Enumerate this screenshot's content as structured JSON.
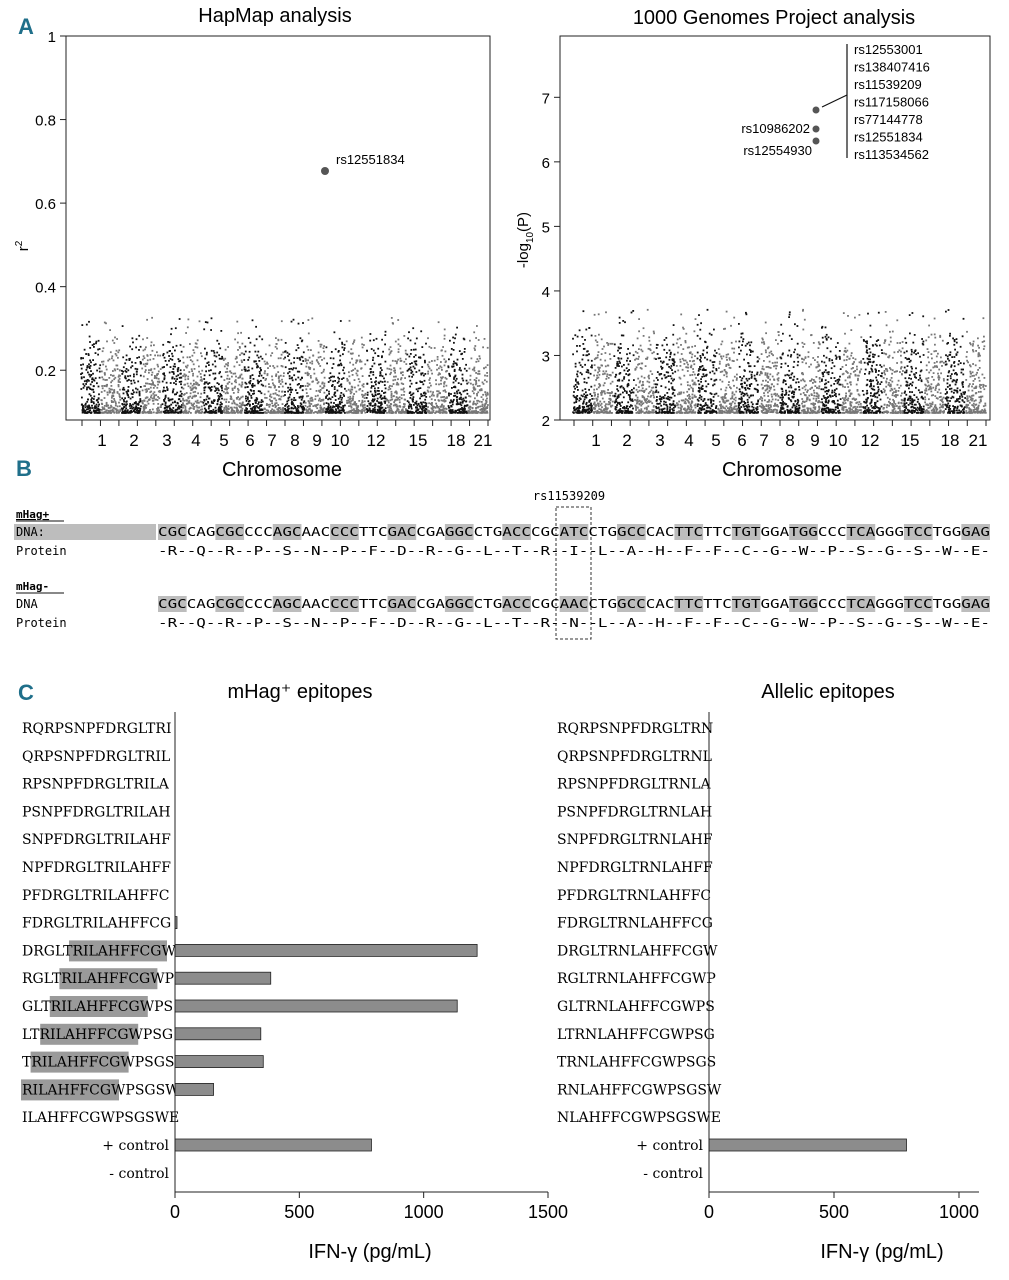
{
  "panel_labels": {
    "a": "A",
    "b": "B",
    "c": "C"
  },
  "panel_a": {
    "xlabel": "Chromosome",
    "chromosome_ticks": [
      "1",
      "2",
      "3",
      "4",
      "5",
      "6",
      "7",
      "8",
      "9",
      "10",
      "12",
      "15",
      "18",
      "21"
    ],
    "hapmap": {
      "title": "HapMap analysis",
      "ylabel": "r",
      "ylabel_sup": "2",
      "yticks": [
        "0.2",
        "0.4",
        "0.6",
        "0.8",
        "1"
      ],
      "highlight_label": "rs12551834"
    },
    "g1000": {
      "title": "1000 Genomes Project analysis",
      "ylabel": "-log",
      "ylabel_sub": "10",
      "ylabel_tail": "(P)",
      "yticks": [
        "2",
        "3",
        "4",
        "5",
        "6",
        "7"
      ],
      "left_labels": [
        "rs10986202",
        "rs12554930"
      ],
      "snp_list": [
        "rs12553001",
        "rs138407416",
        "rs11539209",
        "rs117158066",
        "rs77144778",
        "rs12551834",
        "rs113534562"
      ]
    }
  },
  "panel_b": {
    "snp_label": "rs11539209",
    "mhag_plus_label": "mHag+",
    "mhag_minus_label": "mHag-",
    "dna_label_plus": "DNA:",
    "dna_label_minus": "DNA",
    "protein_label": "Protein",
    "dna_plus": "CGCCAGCGCCCCAGCAACCCCTTCGACCGAGGCCTGACCCGCATCCTGGCCCACTTCTTCTGTGGATGGCCCTCAGGGTCCTGGGAG",
    "dna_minus": "CGCCAGCGCCCCAGCAACCCCTTCGACCGAGGCCTGACCCGCAACCTGGCCCACTTCTTCTGTGGATGGCCCTCAGGGTCCTGGGAG",
    "protein_plus": "-R--Q--R--P--S--N--P--F--D--R--G--L--T--R--I--L--A--H--F--F--C--G--W--P--S--G--S--W--E-",
    "protein_minus": "-R--Q--R--P--S--N--P--F--D--R--G--L--T--R--N--L--A--H--F--F--C--G--W--P--S--G--S--W--E-"
  },
  "chart_data": [
    {
      "type": "bar",
      "orientation": "horizontal",
      "title": "mHag⁺ epitopes",
      "xlabel": "IFN-γ (pg/mL)",
      "xlim": [
        0,
        1500
      ],
      "xticks": [
        "0",
        "500",
        "1000",
        "1500"
      ],
      "categories": [
        "RQRPSNPFDRGLTRI",
        "QRPSNPFDRGLTRIL",
        "RPSNPFDRGLTRILA",
        "PSNPFDRGLTRILAH",
        "SNPFDRGLTRILAHF",
        "NPFDRGLTRILAHFF",
        "PFDRGLTRILAHFFC",
        "FDRGLTRILAHFFCG",
        "DRGLTRILAHFFCGW",
        "RGLTRILAHFFCGWP",
        "GLTRILAHFFCGWPS",
        "LTRILAHFFCGWPSG",
        "TRILAHFFCGWPSGS",
        "RILAHFFCGWPSGSW",
        "ILAHFFCGWPSGSWE",
        "+ control",
        "- control"
      ],
      "values": [
        0,
        0,
        0,
        0,
        0,
        0,
        0,
        8,
        1215,
        385,
        1135,
        345,
        355,
        155,
        0,
        790,
        0
      ]
    },
    {
      "type": "bar",
      "orientation": "horizontal",
      "title": "Allelic epitopes",
      "xlabel": "IFN-γ (pg/mL)",
      "xlim": [
        0,
        1080
      ],
      "xticks": [
        "0",
        "500",
        "1000"
      ],
      "categories": [
        "RQRPSNPFDRGLTRN",
        "QRPSNPFDRGLTRNL",
        "RPSNPFDRGLTRNLA",
        "PSNPFDRGLTRNLAH",
        "SNPFDRGLTRNLAHF",
        "NPFDRGLTRNLAHFF",
        "PFDRGLTRNLAHFFC",
        "FDRGLTRNLAHFFCG",
        "DRGLTRNLAHFFCGW",
        "RGLTRNLAHFFCGWP",
        "GLTRNLAHFFCGWPS",
        "LTRNLAHFFCGWPSG",
        "TRNLAHFFCGWPSGS",
        "RNLAHFFCGWPSGSW",
        "NLAHFFCGWPSGSWE",
        "+ control",
        "- control"
      ],
      "values": [
        0,
        0,
        0,
        0,
        0,
        0,
        0,
        0,
        0,
        0,
        0,
        0,
        0,
        0,
        0,
        790,
        0
      ]
    }
  ]
}
